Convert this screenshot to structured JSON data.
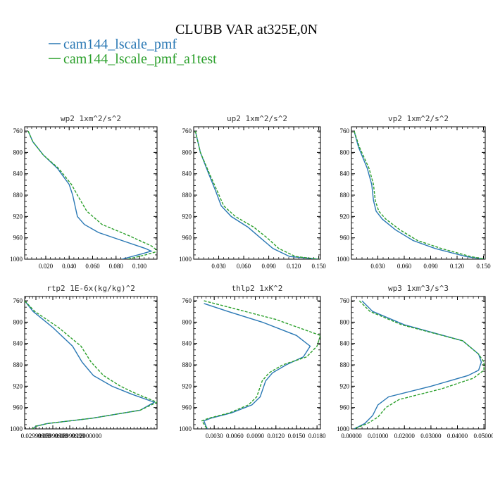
{
  "figure": {
    "title": "CLUBB VAR at325E,0N",
    "legend": [
      {
        "label": "cam144_lscale_pmf",
        "color": "#2a78b4"
      },
      {
        "label": "cam144_lscale_pmf_a1test",
        "color": "#2ca02c",
        "dashed": true
      }
    ]
  },
  "chart_data": [
    {
      "type": "line",
      "title": "wp2  1xm^2/s^2",
      "xlim": [
        0.002,
        0.115
      ],
      "ylim": [
        1000,
        752
      ],
      "xticks": [
        "0.020",
        "0.040",
        "0.060",
        "0.080",
        "0.100"
      ],
      "xtick_values": [
        0.02,
        0.04,
        0.06,
        0.08,
        0.1
      ],
      "yticks": [
        760,
        800,
        840,
        880,
        920,
        960,
        1000
      ],
      "series": [
        {
          "name": "cam144_lscale_pmf",
          "x": [
            0.005,
            0.009,
            0.018,
            0.03,
            0.04,
            0.043,
            0.047,
            0.053,
            0.065,
            0.085,
            0.105,
            0.11,
            0.102,
            0.085
          ],
          "y": [
            760,
            780,
            805,
            830,
            860,
            880,
            920,
            935,
            950,
            965,
            980,
            985,
            990,
            1000
          ]
        },
        {
          "name": "cam144_lscale_pmf_a1test",
          "x": [
            0.005,
            0.009,
            0.018,
            0.031,
            0.042,
            0.047,
            0.055,
            0.068,
            0.09,
            0.11,
            0.116,
            0.105,
            0.09
          ],
          "y": [
            760,
            780,
            805,
            830,
            860,
            880,
            910,
            935,
            955,
            975,
            985,
            992,
            1000
          ]
        }
      ]
    },
    {
      "type": "line",
      "title": "up2  1xm^2/s^2",
      "xlim": [
        0.0,
        0.152
      ],
      "ylim": [
        1000,
        752
      ],
      "xticks": [
        "0.030",
        "0.060",
        "0.090",
        "0.120",
        "0.150"
      ],
      "xtick_values": [
        0.03,
        0.06,
        0.09,
        0.12,
        0.15
      ],
      "yticks": [
        760,
        800,
        840,
        880,
        920,
        960,
        1000
      ],
      "series": [
        {
          "name": "cam144_lscale_pmf",
          "x": [
            0.002,
            0.008,
            0.018,
            0.027,
            0.033,
            0.045,
            0.065,
            0.08,
            0.095,
            0.115,
            0.15
          ],
          "y": [
            760,
            800,
            840,
            875,
            900,
            920,
            940,
            960,
            980,
            995,
            1000
          ]
        },
        {
          "name": "cam144_lscale_pmf_a1test",
          "x": [
            0.002,
            0.008,
            0.019,
            0.029,
            0.036,
            0.05,
            0.072,
            0.088,
            0.102,
            0.122,
            0.15
          ],
          "y": [
            760,
            800,
            840,
            875,
            900,
            920,
            940,
            960,
            980,
            995,
            1000
          ]
        }
      ]
    },
    {
      "type": "line",
      "title": "vp2  1xm^2/s^2",
      "xlim": [
        0.0,
        0.152
      ],
      "ylim": [
        1000,
        752
      ],
      "xticks": [
        "0.030",
        "0.060",
        "0.090",
        "0.120",
        "0.150"
      ],
      "xtick_values": [
        0.03,
        0.06,
        0.09,
        0.12,
        0.15
      ],
      "yticks": [
        760,
        800,
        840,
        880,
        920,
        960,
        1000
      ],
      "series": [
        {
          "name": "cam144_lscale_pmf",
          "x": [
            0.003,
            0.008,
            0.018,
            0.023,
            0.025,
            0.028,
            0.035,
            0.05,
            0.07,
            0.095,
            0.13,
            0.15
          ],
          "y": [
            760,
            790,
            830,
            860,
            890,
            910,
            925,
            945,
            965,
            980,
            995,
            1000
          ]
        },
        {
          "name": "cam144_lscale_pmf_a1test",
          "x": [
            0.003,
            0.009,
            0.02,
            0.025,
            0.027,
            0.031,
            0.039,
            0.055,
            0.075,
            0.102,
            0.135,
            0.152
          ],
          "y": [
            760,
            790,
            830,
            860,
            890,
            910,
            925,
            945,
            965,
            980,
            995,
            1000
          ]
        }
      ]
    },
    {
      "type": "line",
      "title": "rtp2  1E-6x(kg/kg)^2",
      "xlim": [
        0.01,
        0.245
      ],
      "ylim": [
        1000,
        752
      ],
      "xticks": [
        "0.02999999",
        "0.05999999",
        "0.08999999",
        "0.12000000"
      ],
      "xtick_values": [
        0.03,
        0.06,
        0.09,
        0.12
      ],
      "yticks": [
        760,
        800,
        840,
        880,
        920,
        960,
        1000
      ],
      "series": [
        {
          "name": "cam144_lscale_pmf",
          "x": [
            0.01,
            0.025,
            0.06,
            0.095,
            0.112,
            0.132,
            0.165,
            0.2,
            0.24,
            0.215,
            0.13,
            0.05,
            0.03,
            0.024
          ],
          "y": [
            760,
            780,
            810,
            845,
            875,
            900,
            920,
            935,
            950,
            965,
            980,
            990,
            995,
            1000
          ]
        },
        {
          "name": "cam144_lscale_pmf_a1test",
          "x": [
            0.01,
            0.028,
            0.07,
            0.11,
            0.128,
            0.15,
            0.18,
            0.21,
            0.245,
            0.215,
            0.13,
            0.05,
            0.03,
            0.024
          ],
          "y": [
            760,
            780,
            810,
            845,
            875,
            900,
            920,
            935,
            950,
            965,
            980,
            990,
            995,
            1000
          ]
        }
      ]
    },
    {
      "type": "line",
      "title": "thlp2  1xK^2",
      "xlim": [
        0.0,
        0.0185
      ],
      "ylim": [
        1000,
        752
      ],
      "xticks": [
        "0.0030",
        "0.0060",
        "0.0090",
        "0.0120",
        "0.0150",
        "0.0180"
      ],
      "xtick_values": [
        0.003,
        0.006,
        0.009,
        0.012,
        0.015,
        0.018
      ],
      "yticks": [
        760,
        800,
        840,
        880,
        920,
        960,
        1000
      ],
      "series": [
        {
          "name": "cam144_lscale_pmf",
          "x": [
            0.0015,
            0.005,
            0.01,
            0.015,
            0.017,
            0.016,
            0.0135,
            0.0115,
            0.0105,
            0.0097,
            0.0085,
            0.0055,
            0.0025,
            0.0015,
            0.0018,
            0.002
          ],
          "y": [
            765,
            780,
            800,
            825,
            845,
            865,
            880,
            895,
            910,
            940,
            955,
            970,
            980,
            985,
            995,
            1000
          ]
        },
        {
          "name": "cam144_lscale_pmf_a1test",
          "x": [
            0.0015,
            0.006,
            0.012,
            0.0185,
            0.018,
            0.0165,
            0.013,
            0.011,
            0.01,
            0.0092,
            0.008,
            0.0052,
            0.0022,
            0.0012,
            0.0017,
            0.002
          ],
          "y": [
            760,
            775,
            795,
            825,
            845,
            865,
            880,
            895,
            910,
            940,
            955,
            970,
            980,
            985,
            995,
            1000
          ]
        }
      ]
    },
    {
      "type": "line",
      "title": "wp3  1xm^3/s^3",
      "xlim": [
        0.0,
        0.0505
      ],
      "ylim": [
        1000,
        752
      ],
      "xticks": [
        "0.00000",
        "0.01000",
        "0.02000",
        "0.03000",
        "0.04000",
        "0.05000"
      ],
      "xtick_values": [
        0.0,
        0.01,
        0.02,
        0.03,
        0.04,
        0.05
      ],
      "yticks": [
        760,
        800,
        840,
        880,
        920,
        960,
        1000
      ],
      "series": [
        {
          "name": "cam144_lscale_pmf",
          "x": [
            0.004,
            0.008,
            0.02,
            0.042,
            0.048,
            0.049,
            0.048,
            0.044,
            0.03,
            0.014,
            0.01,
            0.008,
            0.005,
            0.001
          ],
          "y": [
            760,
            780,
            805,
            835,
            860,
            875,
            890,
            900,
            920,
            940,
            955,
            975,
            990,
            1000
          ]
        },
        {
          "name": "cam144_lscale_pmf_a1test",
          "x": [
            0.003,
            0.007,
            0.019,
            0.042,
            0.048,
            0.05,
            0.05,
            0.046,
            0.034,
            0.018,
            0.013,
            0.01,
            0.006,
            0.001
          ],
          "y": [
            760,
            780,
            805,
            835,
            860,
            875,
            890,
            905,
            925,
            945,
            960,
            978,
            990,
            1000
          ]
        }
      ]
    }
  ]
}
